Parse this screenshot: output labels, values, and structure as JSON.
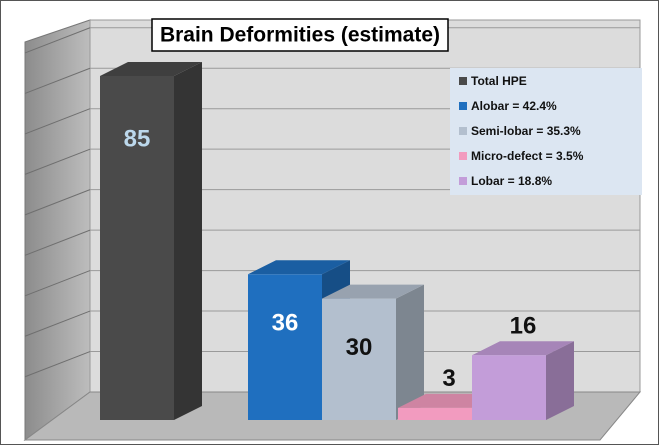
{
  "chart_data": {
    "type": "bar3d",
    "title": "Brain Deformities (estimate)",
    "series": [
      {
        "name": "Total HPE",
        "color": "#4a4a4a",
        "values": [
          85
        ]
      },
      {
        "name": "Alobar = 42.4%",
        "color": "#1f6fbf",
        "values": [
          36
        ]
      },
      {
        "name": "Semi-lobar = 35.3%",
        "color": "#b3bfce",
        "values": [
          30
        ]
      },
      {
        "name": "Micro-defect = 3.5%",
        "color": "#f29bbf",
        "values": [
          3
        ]
      },
      {
        "name": "Lobar = 18.8%",
        "color": "#c39dd9",
        "values": [
          16
        ]
      }
    ],
    "ylim": [
      0,
      90
    ],
    "yticks": [
      0,
      10,
      20,
      30,
      40,
      50,
      60,
      70,
      80,
      90
    ],
    "grid": true
  }
}
